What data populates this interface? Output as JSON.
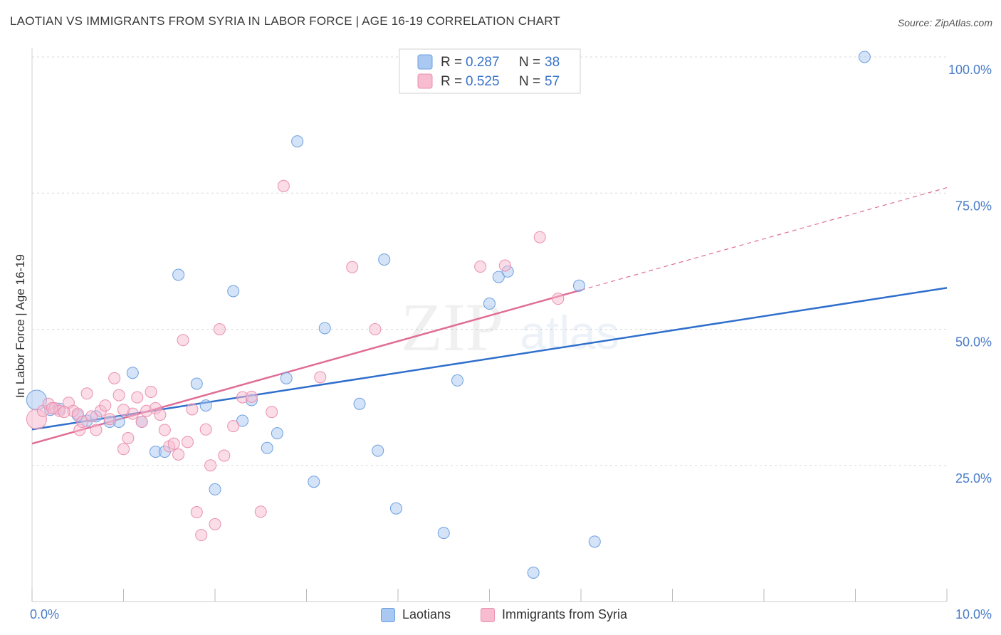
{
  "header": {
    "title": "LAOTIAN VS IMMIGRANTS FROM SYRIA IN LABOR FORCE | AGE 16-19 CORRELATION CHART",
    "source": "Source: ZipAtlas.com"
  },
  "watermark": {
    "zip": "ZIP",
    "atlas": "atlas"
  },
  "colors": {
    "blue_fill": "#a9c8f2",
    "blue_stroke": "#6d9fe0",
    "blue_line": "#2f6fcc",
    "pink_fill": "#f7bccf",
    "pink_stroke": "#ea8fae",
    "pink_line": "#e06d96",
    "tick_label": "#4a7cc7",
    "grid": "#d8d8d8"
  },
  "legend_box": {
    "entries": [
      {
        "r_label": "R =",
        "r_value": "0.287",
        "n_label": "N =",
        "n_value": "38",
        "series": "blue"
      },
      {
        "r_label": "R =",
        "r_value": "0.525",
        "n_label": "N =",
        "n_value": "57",
        "series": "pink"
      }
    ]
  },
  "chart_data": {
    "type": "scatter",
    "title": "LAOTIAN VS IMMIGRANTS FROM SYRIA IN LABOR FORCE | AGE 16-19 CORRELATION CHART",
    "xlabel": "",
    "ylabel": "In Labor Force | Age 16-19",
    "xlim": [
      0,
      10
    ],
    "ylim": [
      0,
      105
    ],
    "x_tick_labels": [
      "0.0%",
      "10.0%"
    ],
    "y_ticks": [
      25,
      50,
      75,
      100
    ],
    "y_tick_labels": [
      "25.0%",
      "50.0%",
      "75.0%",
      "100.0%"
    ],
    "grid": true,
    "legend_position": "top-center",
    "series": [
      {
        "name": "Laotians",
        "color": "#a9c8f2",
        "points": [
          [
            0.05,
            37.0
          ],
          [
            0.2,
            35.2
          ],
          [
            0.3,
            35.4
          ],
          [
            0.5,
            34.2
          ],
          [
            0.6,
            33.2
          ],
          [
            0.7,
            34.0
          ],
          [
            0.85,
            33.0
          ],
          [
            0.95,
            33.0
          ],
          [
            1.1,
            42.0
          ],
          [
            1.2,
            33.0
          ],
          [
            1.35,
            27.5
          ],
          [
            1.45,
            27.5
          ],
          [
            1.6,
            60.0
          ],
          [
            1.8,
            40.0
          ],
          [
            1.9,
            36.0
          ],
          [
            2.0,
            20.6
          ],
          [
            2.2,
            57.0
          ],
          [
            2.3,
            33.2
          ],
          [
            2.4,
            37.0
          ],
          [
            2.57,
            28.2
          ],
          [
            2.68,
            30.9
          ],
          [
            2.78,
            41.0
          ],
          [
            2.9,
            84.5
          ],
          [
            3.08,
            22.0
          ],
          [
            3.2,
            50.2
          ],
          [
            3.58,
            36.3
          ],
          [
            3.78,
            27.7
          ],
          [
            3.85,
            62.8
          ],
          [
            3.98,
            17.1
          ],
          [
            4.5,
            12.6
          ],
          [
            4.65,
            40.6
          ],
          [
            5.0,
            54.7
          ],
          [
            5.1,
            59.6
          ],
          [
            5.2,
            60.6
          ],
          [
            5.48,
            5.3
          ],
          [
            5.98,
            58.0
          ],
          [
            6.15,
            11.0
          ],
          [
            9.1,
            100.0
          ]
        ],
        "trend": {
          "x": [
            0,
            10
          ],
          "y": [
            31.6,
            57.6
          ]
        }
      },
      {
        "name": "Immigrants from Syria",
        "color": "#f7bccf",
        "points": [
          [
            0.05,
            33.5
          ],
          [
            0.12,
            35.0
          ],
          [
            0.18,
            36.3
          ],
          [
            0.25,
            35.5
          ],
          [
            0.3,
            35.0
          ],
          [
            0.4,
            36.5
          ],
          [
            0.45,
            35.0
          ],
          [
            0.5,
            34.5
          ],
          [
            0.52,
            31.5
          ],
          [
            0.55,
            33.0
          ],
          [
            0.6,
            38.2
          ],
          [
            0.65,
            34.0
          ],
          [
            0.7,
            31.5
          ],
          [
            0.75,
            35.0
          ],
          [
            0.8,
            36.0
          ],
          [
            0.85,
            33.5
          ],
          [
            0.9,
            41.0
          ],
          [
            0.95,
            37.9
          ],
          [
            1.0,
            28.0
          ],
          [
            1.05,
            30.0
          ],
          [
            1.1,
            34.5
          ],
          [
            1.15,
            37.5
          ],
          [
            1.2,
            33.0
          ],
          [
            1.25,
            35.0
          ],
          [
            1.3,
            38.5
          ],
          [
            1.35,
            35.5
          ],
          [
            1.4,
            34.3
          ],
          [
            1.45,
            31.5
          ],
          [
            1.5,
            28.5
          ],
          [
            1.55,
            29.0
          ],
          [
            1.6,
            27.0
          ],
          [
            1.65,
            48.0
          ],
          [
            1.7,
            29.3
          ],
          [
            1.75,
            35.3
          ],
          [
            1.8,
            16.4
          ],
          [
            1.85,
            12.2
          ],
          [
            1.9,
            31.6
          ],
          [
            1.95,
            25.0
          ],
          [
            2.0,
            14.2
          ],
          [
            2.05,
            50.0
          ],
          [
            2.1,
            26.8
          ],
          [
            2.2,
            32.2
          ],
          [
            2.3,
            37.5
          ],
          [
            2.4,
            37.6
          ],
          [
            2.5,
            16.5
          ],
          [
            2.62,
            34.8
          ],
          [
            2.75,
            76.3
          ],
          [
            3.15,
            41.2
          ],
          [
            3.5,
            61.4
          ],
          [
            3.75,
            50.0
          ],
          [
            4.9,
            61.5
          ],
          [
            5.17,
            61.7
          ],
          [
            5.55,
            66.9
          ],
          [
            5.75,
            55.6
          ],
          [
            0.22,
            35.5
          ],
          [
            0.35,
            34.8
          ],
          [
            1.0,
            35.2
          ]
        ],
        "trend": {
          "x": [
            0,
            10
          ],
          "y": [
            29.0,
            76.0
          ],
          "solid_until_x": 6.0
        }
      }
    ]
  },
  "bottom_legend": {
    "items": [
      {
        "label": "Laotians",
        "series": "blue"
      },
      {
        "label": "Immigrants from Syria",
        "series": "pink"
      }
    ]
  }
}
